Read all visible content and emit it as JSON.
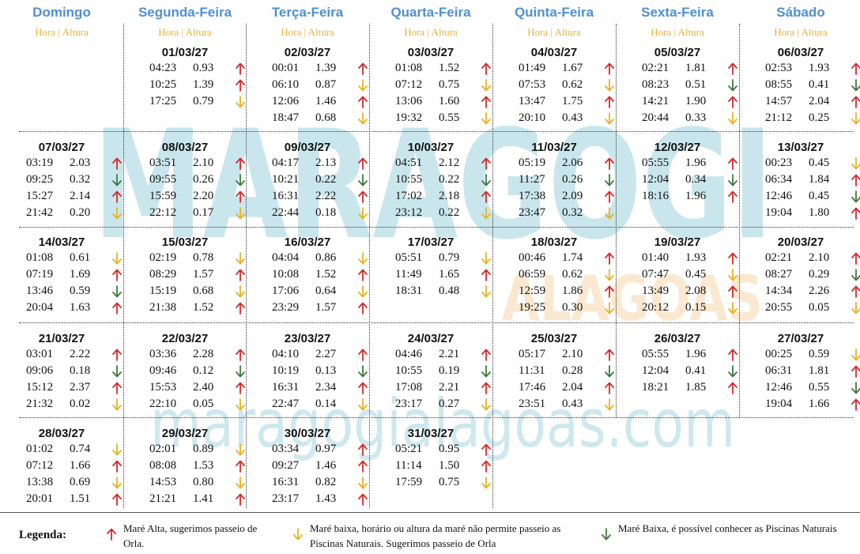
{
  "watermark": {
    "brand": "MARAGOGI",
    "sub": "ALAGOAS",
    "url": "maragogialagoas.com"
  },
  "columns": [
    {
      "day": "Domingo",
      "sub": "Hora | Altura"
    },
    {
      "day": "Segunda-Feira",
      "sub": "Hora | Altura"
    },
    {
      "day": "Terça-Feira",
      "sub": "Hora | Altura"
    },
    {
      "day": "Quarta-Feira",
      "sub": "Hora | Altura"
    },
    {
      "day": "Quinta-Feira",
      "sub": "Hora | Altura"
    },
    {
      "day": "Sexta-Feira",
      "sub": "Hora | Altura"
    },
    {
      "day": "Sábado",
      "sub": "Hora | Altura"
    }
  ],
  "weeks": [
    [
      null,
      {
        "date": "01/03/27",
        "tides": [
          [
            "04:23",
            "0.93",
            "red"
          ],
          [
            "10:25",
            "1.39",
            "red"
          ],
          [
            "17:25",
            "0.79",
            "yellow"
          ]
        ]
      },
      {
        "date": "02/03/27",
        "tides": [
          [
            "00:01",
            "1.39",
            "red"
          ],
          [
            "06:10",
            "0.87",
            "yellow"
          ],
          [
            "12:06",
            "1.46",
            "red"
          ],
          [
            "18:47",
            "0.68",
            "yellow"
          ]
        ]
      },
      {
        "date": "03/03/27",
        "tides": [
          [
            "01:08",
            "1.52",
            "red"
          ],
          [
            "07:12",
            "0.75",
            "yellow"
          ],
          [
            "13:06",
            "1.60",
            "red"
          ],
          [
            "19:32",
            "0.55",
            "yellow"
          ]
        ]
      },
      {
        "date": "04/03/27",
        "tides": [
          [
            "01:49",
            "1.67",
            "red"
          ],
          [
            "07:53",
            "0.62",
            "yellow"
          ],
          [
            "13:47",
            "1.75",
            "red"
          ],
          [
            "20:10",
            "0.43",
            "yellow"
          ]
        ]
      },
      {
        "date": "05/03/27",
        "tides": [
          [
            "02:21",
            "1.81",
            "red"
          ],
          [
            "08:23",
            "0.51",
            "green"
          ],
          [
            "14:21",
            "1.90",
            "red"
          ],
          [
            "20:44",
            "0.33",
            "yellow"
          ]
        ]
      },
      {
        "date": "06/03/27",
        "tides": [
          [
            "02:53",
            "1.93",
            "red"
          ],
          [
            "08:55",
            "0.41",
            "green"
          ],
          [
            "14:57",
            "2.04",
            "red"
          ],
          [
            "21:12",
            "0.25",
            "yellow"
          ]
        ]
      }
    ],
    [
      {
        "date": "07/03/27",
        "tides": [
          [
            "03:19",
            "2.03",
            "red"
          ],
          [
            "09:25",
            "0.32",
            "green"
          ],
          [
            "15:27",
            "2.14",
            "red"
          ],
          [
            "21:42",
            "0.20",
            "yellow"
          ]
        ]
      },
      {
        "date": "08/03/27",
        "tides": [
          [
            "03:51",
            "2.10",
            "red"
          ],
          [
            "09:55",
            "0.26",
            "green"
          ],
          [
            "15:59",
            "2.20",
            "red"
          ],
          [
            "22:12",
            "0.17",
            "yellow"
          ]
        ]
      },
      {
        "date": "09/03/27",
        "tides": [
          [
            "04:17",
            "2.13",
            "red"
          ],
          [
            "10:21",
            "0.22",
            "green"
          ],
          [
            "16:31",
            "2.22",
            "red"
          ],
          [
            "22:44",
            "0.18",
            "yellow"
          ]
        ]
      },
      {
        "date": "10/03/27",
        "tides": [
          [
            "04:51",
            "2.12",
            "red"
          ],
          [
            "10:55",
            "0.22",
            "green"
          ],
          [
            "17:02",
            "2.18",
            "red"
          ],
          [
            "23:12",
            "0.22",
            "yellow"
          ]
        ]
      },
      {
        "date": "11/03/27",
        "tides": [
          [
            "05:19",
            "2.06",
            "red"
          ],
          [
            "11:27",
            "0.26",
            "green"
          ],
          [
            "17:38",
            "2.09",
            "red"
          ],
          [
            "23:47",
            "0.32",
            "yellow"
          ]
        ]
      },
      {
        "date": "12/03/27",
        "tides": [
          [
            "05:55",
            "1.96",
            "red"
          ],
          [
            "12:04",
            "0.34",
            "green"
          ],
          [
            "18:16",
            "1.96",
            "red"
          ]
        ]
      },
      {
        "date": "13/03/27",
        "tides": [
          [
            "00:23",
            "0.45",
            "yellow"
          ],
          [
            "06:34",
            "1.84",
            "red"
          ],
          [
            "12:46",
            "0.45",
            "green"
          ],
          [
            "19:04",
            "1.80",
            "red"
          ]
        ]
      }
    ],
    [
      {
        "date": "14/03/27",
        "tides": [
          [
            "01:08",
            "0.61",
            "yellow"
          ],
          [
            "07:19",
            "1.69",
            "red"
          ],
          [
            "13:46",
            "0.59",
            "green"
          ],
          [
            "20:04",
            "1.63",
            "red"
          ]
        ]
      },
      {
        "date": "15/03/27",
        "tides": [
          [
            "02:19",
            "0.78",
            "yellow"
          ],
          [
            "08:29",
            "1.57",
            "red"
          ],
          [
            "15:19",
            "0.68",
            "yellow"
          ],
          [
            "21:38",
            "1.52",
            "red"
          ]
        ]
      },
      {
        "date": "16/03/27",
        "tides": [
          [
            "04:04",
            "0.86",
            "yellow"
          ],
          [
            "10:08",
            "1.52",
            "red"
          ],
          [
            "17:06",
            "0.64",
            "yellow"
          ],
          [
            "23:29",
            "1.57",
            "red"
          ]
        ]
      },
      {
        "date": "17/03/27",
        "tides": [
          [
            "05:51",
            "0.79",
            "yellow"
          ],
          [
            "11:49",
            "1.65",
            "red"
          ],
          [
            "18:31",
            "0.48",
            "yellow"
          ]
        ]
      },
      {
        "date": "18/03/27",
        "tides": [
          [
            "00:46",
            "1.74",
            "red"
          ],
          [
            "06:59",
            "0.62",
            "yellow"
          ],
          [
            "12:59",
            "1.86",
            "red"
          ],
          [
            "19:25",
            "0.30",
            "yellow"
          ]
        ]
      },
      {
        "date": "19/03/27",
        "tides": [
          [
            "01:40",
            "1.93",
            "red"
          ],
          [
            "07:47",
            "0.45",
            "yellow"
          ],
          [
            "13:49",
            "2.08",
            "red"
          ],
          [
            "20:12",
            "0.15",
            "yellow"
          ]
        ]
      },
      {
        "date": "20/03/27",
        "tides": [
          [
            "02:21",
            "2.10",
            "red"
          ],
          [
            "08:27",
            "0.29",
            "green"
          ],
          [
            "14:34",
            "2.26",
            "red"
          ],
          [
            "20:55",
            "0.05",
            "yellow"
          ]
        ]
      }
    ],
    [
      {
        "date": "21/03/27",
        "tides": [
          [
            "03:01",
            "2.22",
            "red"
          ],
          [
            "09:06",
            "0.18",
            "green"
          ],
          [
            "15:12",
            "2.37",
            "red"
          ],
          [
            "21:32",
            "0.02",
            "yellow"
          ]
        ]
      },
      {
        "date": "22/03/27",
        "tides": [
          [
            "03:36",
            "2.28",
            "red"
          ],
          [
            "09:46",
            "0.12",
            "green"
          ],
          [
            "15:53",
            "2.40",
            "red"
          ],
          [
            "22:10",
            "0.05",
            "yellow"
          ]
        ]
      },
      {
        "date": "23/03/27",
        "tides": [
          [
            "04:10",
            "2.27",
            "red"
          ],
          [
            "10:19",
            "0.13",
            "green"
          ],
          [
            "16:31",
            "2.34",
            "red"
          ],
          [
            "22:47",
            "0.14",
            "yellow"
          ]
        ]
      },
      {
        "date": "24/03/27",
        "tides": [
          [
            "04:46",
            "2.21",
            "red"
          ],
          [
            "10:55",
            "0.19",
            "green"
          ],
          [
            "17:08",
            "2.21",
            "red"
          ],
          [
            "23:17",
            "0.27",
            "yellow"
          ]
        ]
      },
      {
        "date": "25/03/27",
        "tides": [
          [
            "05:17",
            "2.10",
            "red"
          ],
          [
            "11:31",
            "0.28",
            "green"
          ],
          [
            "17:46",
            "2.04",
            "red"
          ],
          [
            "23:51",
            "0.43",
            "yellow"
          ]
        ]
      },
      {
        "date": "26/03/27",
        "tides": [
          [
            "05:55",
            "1.96",
            "red"
          ],
          [
            "12:04",
            "0.41",
            "green"
          ],
          [
            "18:21",
            "1.85",
            "red"
          ]
        ]
      },
      {
        "date": "27/03/27",
        "tides": [
          [
            "00:25",
            "0.59",
            "yellow"
          ],
          [
            "06:31",
            "1.81",
            "red"
          ],
          [
            "12:46",
            "0.55",
            "green"
          ],
          [
            "19:04",
            "1.66",
            "red"
          ]
        ]
      }
    ],
    [
      {
        "date": "28/03/27",
        "tides": [
          [
            "01:02",
            "0.74",
            "yellow"
          ],
          [
            "07:12",
            "1.66",
            "red"
          ],
          [
            "13:38",
            "0.69",
            "yellow"
          ],
          [
            "20:01",
            "1.51",
            "red"
          ]
        ]
      },
      {
        "date": "29/03/27",
        "tides": [
          [
            "02:01",
            "0.89",
            "yellow"
          ],
          [
            "08:08",
            "1.53",
            "red"
          ],
          [
            "14:53",
            "0.80",
            "yellow"
          ],
          [
            "21:21",
            "1.41",
            "red"
          ]
        ]
      },
      {
        "date": "30/03/27",
        "tides": [
          [
            "03:34",
            "0.97",
            "red"
          ],
          [
            "09:27",
            "1.46",
            "red"
          ],
          [
            "16:31",
            "0.82",
            "yellow"
          ],
          [
            "23:17",
            "1.43",
            "red"
          ]
        ]
      },
      {
        "date": "31/03/27",
        "tides": [
          [
            "05:21",
            "0.95",
            "red"
          ],
          [
            "11:14",
            "1.50",
            "red"
          ],
          [
            "17:59",
            "0.75",
            "yellow"
          ]
        ]
      },
      null,
      null,
      null
    ]
  ],
  "legend": {
    "title": "Legenda:",
    "items": [
      {
        "color": "red",
        "text": "Maré Alta, sugerimos passeio de Orla."
      },
      {
        "color": "yellow",
        "text": "Maré baixa, horário ou altura da maré não permite passeio as Piscinas Naturais. Sugerimos passeio de Orla"
      },
      {
        "color": "green",
        "text": "Maré Baixa, é possível conhecer as Piscinas Naturais"
      }
    ]
  },
  "colors": {
    "red": "#d62a2a",
    "yellow": "#e6b420",
    "green": "#3d7a3d",
    "header": "#4f8fd4",
    "sub": "#e8b23a",
    "watermark": "#9fd3df"
  }
}
